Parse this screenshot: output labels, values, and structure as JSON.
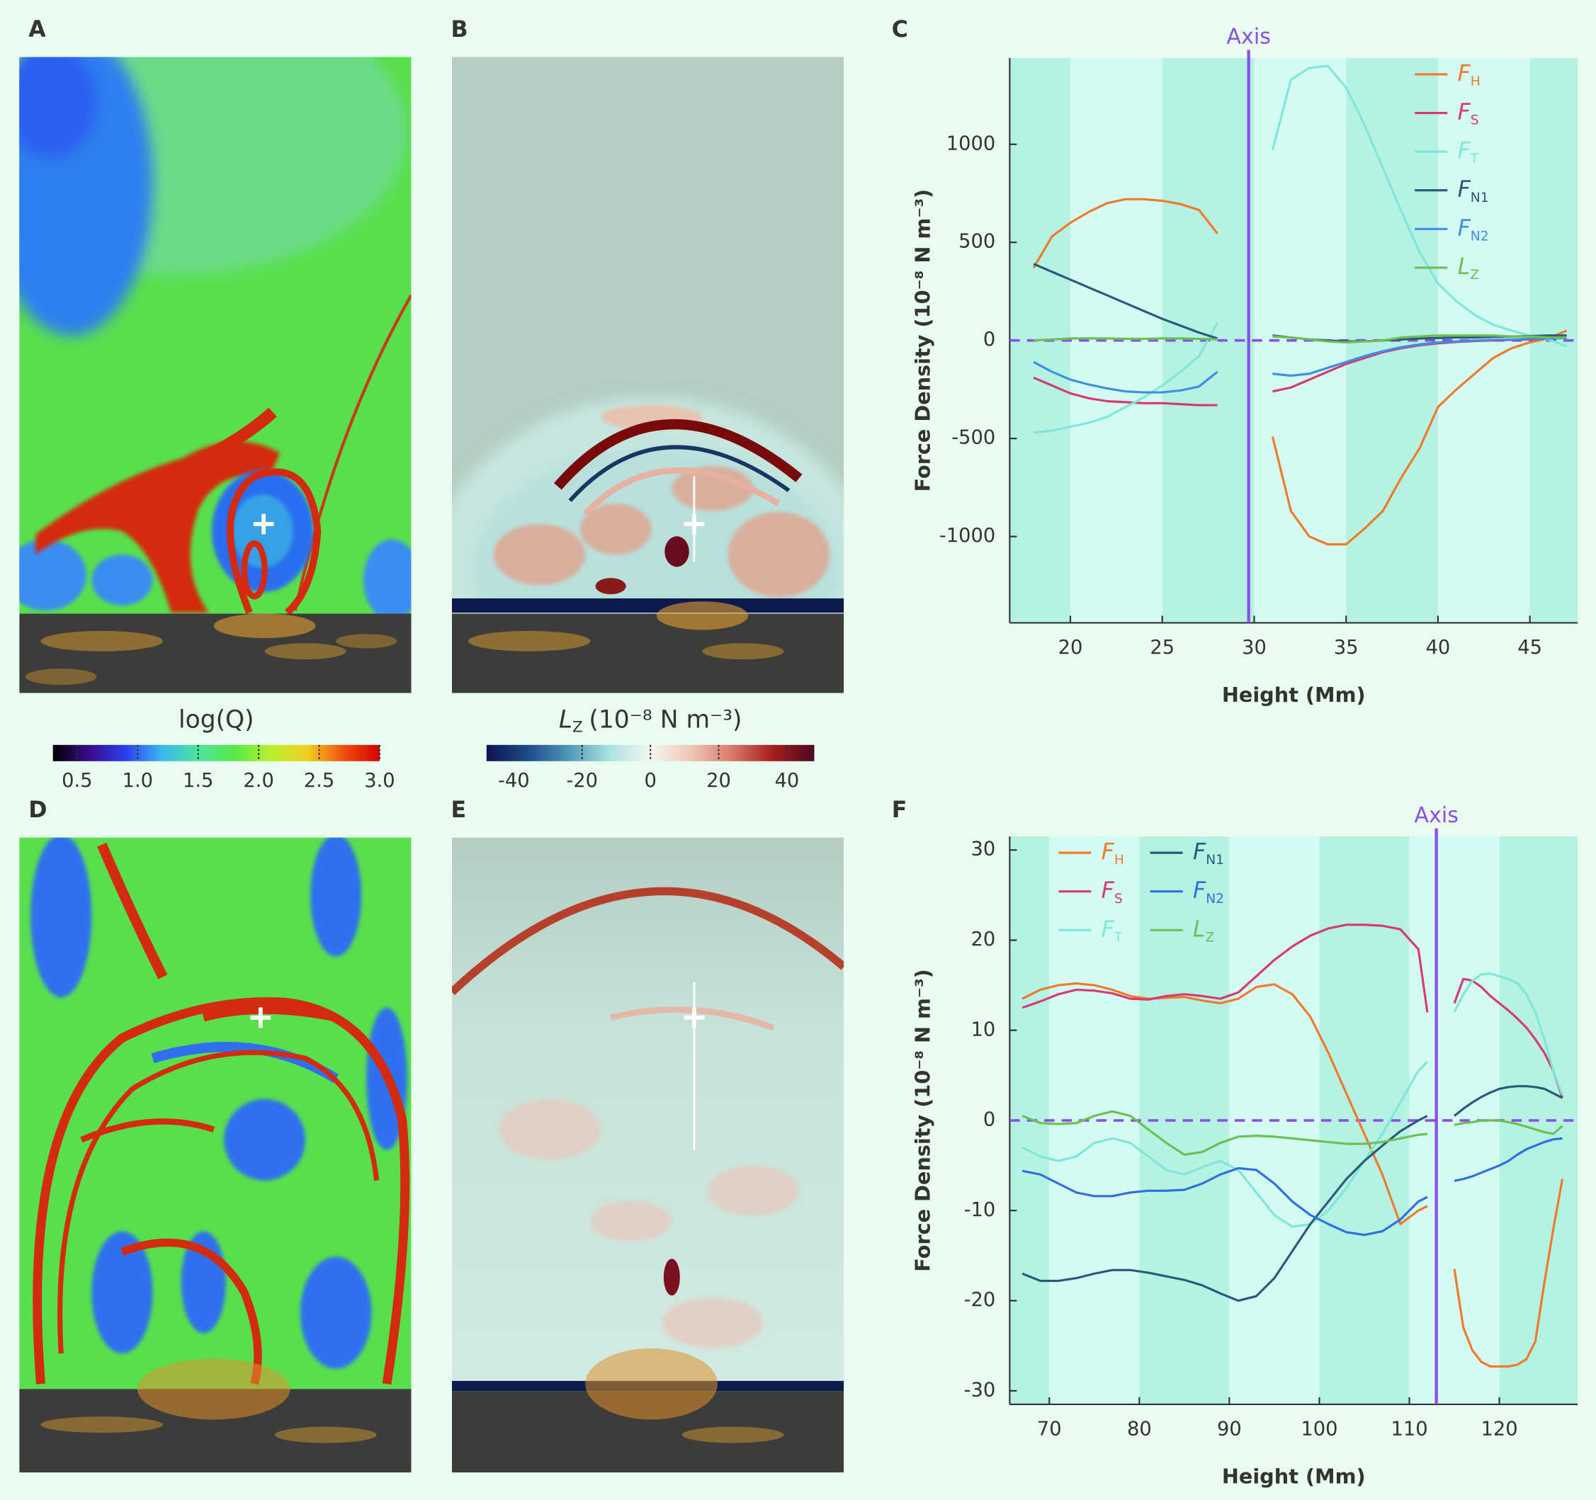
{
  "panel_labels": [
    "A",
    "B",
    "C",
    "D",
    "E",
    "F"
  ],
  "chart_data": [
    {
      "type": "colorbar",
      "label": "log(Q)",
      "xlim": [
        0.3,
        3.0
      ],
      "xticks": [
        0.5,
        {
          "value": 1,
          "label": "1.0"
        },
        1.5,
        {
          "value": 2,
          "label": "2.0"
        },
        2.5,
        {
          "value": 3,
          "label": "3.0"
        }
      ],
      "colormap": [
        "#000000",
        "#3a0a8a",
        "#2a3ff0",
        "#3cb7f0",
        "#4ee3a0",
        "#58e84a",
        "#b8f030",
        "#f0d020",
        "#f05010",
        "#d40000"
      ]
    },
    {
      "type": "colorbar",
      "label": "L",
      "label_subscript": "Z",
      "label_unit": "(10⁻⁸ N m⁻³)",
      "xlim": [
        -48,
        48
      ],
      "xticks": [
        -40,
        -20,
        0,
        20,
        40
      ],
      "colormap": [
        "#0c1550",
        "#1d4a8a",
        "#4f97b8",
        "#a9e3de",
        "#f4f7f2",
        "#efc6b4",
        "#d8786a",
        "#a41c1c",
        "#4a0a20"
      ]
    },
    {
      "type": "line",
      "xlabel": "Height (Mm)",
      "ylabel": "Force Density (10⁻⁸ N m⁻³)",
      "xlim": [
        16.7,
        47.6
      ],
      "ylim": [
        -1440,
        1440
      ],
      "xticks": [
        20,
        25,
        30,
        35,
        40,
        45
      ],
      "yticks": [
        -1000,
        -500,
        0,
        500,
        1000
      ],
      "axis_marker": {
        "x": 29.7,
        "label": "Axis",
        "color": "#8a4fe8"
      },
      "zero_line": true,
      "band_colors": [
        "#b5f2e4",
        "#d4fbf3"
      ],
      "legend": "upper right",
      "legend_columns": 1,
      "x": [
        18,
        19,
        20,
        21,
        22,
        23,
        24,
        25,
        26,
        27,
        28,
        30,
        31,
        32,
        33,
        34,
        35,
        36,
        37,
        38,
        39,
        40,
        41,
        42,
        43,
        44,
        45,
        46,
        47
      ],
      "series": [
        {
          "name": "F",
          "subscript": "H",
          "color": "#f07a28",
          "values": [
            370,
            530,
            600,
            655,
            700,
            720,
            720,
            712,
            695,
            665,
            545,
            null,
            -490,
            -870,
            -1000,
            -1040,
            -1040,
            -960,
            -870,
            -700,
            -550,
            -340,
            -250,
            -170,
            -90,
            -40,
            -10,
            10,
            50
          ]
        },
        {
          "name": "F",
          "subscript": "S",
          "color": "#d63a6e",
          "values": [
            -190,
            -230,
            -270,
            -295,
            -310,
            -315,
            -320,
            -320,
            -325,
            -330,
            -330,
            null,
            -260,
            -240,
            -200,
            -160,
            -120,
            -90,
            -60,
            -40,
            -25,
            -15,
            -8,
            -3,
            0,
            3,
            5,
            10,
            15
          ]
        },
        {
          "name": "F",
          "subscript": "T",
          "color": "#7de8d8",
          "values": [
            -470,
            -460,
            -440,
            -420,
            -390,
            -340,
            -290,
            -230,
            -160,
            -80,
            90,
            null,
            970,
            1330,
            1390,
            1400,
            1290,
            1100,
            880,
            660,
            450,
            290,
            200,
            130,
            80,
            50,
            25,
            5,
            -30
          ]
        },
        {
          "name": "F",
          "subscript": "N1",
          "color": "#2a5a7a",
          "values": [
            390,
            350,
            310,
            270,
            230,
            190,
            150,
            110,
            75,
            40,
            10,
            null,
            25,
            15,
            5,
            0,
            -5,
            -5,
            0,
            5,
            10,
            12,
            15,
            15,
            18,
            20,
            22,
            25,
            25
          ]
        },
        {
          "name": "F",
          "subscript": "N2",
          "color": "#3d8fe6",
          "values": [
            -110,
            -160,
            -200,
            -225,
            -245,
            -260,
            -265,
            -265,
            -255,
            -235,
            -160,
            null,
            -170,
            -180,
            -170,
            -140,
            -110,
            -80,
            -55,
            -35,
            -20,
            -10,
            -5,
            0,
            3,
            5,
            8,
            10,
            12
          ]
        },
        {
          "name": "L",
          "subscript": "Z",
          "color": "#6cbf52",
          "values": [
            0,
            5,
            10,
            10,
            10,
            8,
            8,
            10,
            10,
            8,
            5,
            null,
            20,
            15,
            5,
            -5,
            -10,
            -5,
            0,
            15,
            20,
            25,
            25,
            25,
            25,
            20,
            20,
            15,
            15
          ]
        }
      ]
    },
    {
      "type": "line",
      "xlabel": "Height (Mm)",
      "ylabel": "Force Density (10⁻⁸ N m⁻³)",
      "xlim": [
        65.6,
        128.7
      ],
      "ylim": [
        -31.5,
        31.5
      ],
      "xticks": [
        70,
        80,
        90,
        100,
        110,
        120
      ],
      "yticks": [
        -30,
        -20,
        -10,
        0,
        10,
        20,
        30
      ],
      "axis_marker": {
        "x": 113,
        "label": "Axis",
        "color": "#8a4fe8"
      },
      "zero_line": true,
      "band_colors": [
        "#b5f2e4",
        "#d4fbf3"
      ],
      "legend": "upper left",
      "legend_columns": 2,
      "x": [
        67,
        69,
        71,
        73,
        75,
        77,
        79,
        81,
        83,
        85,
        87,
        89,
        91,
        93,
        95,
        97,
        99,
        101,
        103,
        105,
        107,
        109,
        111,
        112,
        113,
        115,
        116,
        117,
        118,
        119,
        120,
        121,
        122,
        123,
        124,
        125,
        126,
        127
      ],
      "series": [
        {
          "name": "F",
          "subscript": "H",
          "color": "#f07a28",
          "values": [
            13.5,
            14.5,
            15,
            15.2,
            15,
            14.5,
            13.8,
            13.5,
            13.6,
            13.7,
            13.3,
            13,
            13.5,
            14.8,
            15.1,
            14,
            11.5,
            7.5,
            3,
            -1.5,
            -6,
            -11.5,
            -10,
            -9.5,
            null,
            -16.5,
            -23,
            -25.5,
            -26.8,
            -27.3,
            -27.3,
            -27.3,
            -27.1,
            -26.5,
            -24.5,
            -18,
            -12,
            -6.5
          ]
        },
        {
          "name": "F",
          "subscript": "S",
          "color": "#d63a6e",
          "values": [
            12.5,
            13.2,
            14,
            14.5,
            14.4,
            14.1,
            13.5,
            13.4,
            13.8,
            14,
            13.8,
            13.5,
            14.2,
            16,
            17.8,
            19.3,
            20.5,
            21.3,
            21.7,
            21.7,
            21.6,
            21.2,
            19,
            12,
            null,
            13,
            15.7,
            15.5,
            14.8,
            13.8,
            13,
            12.2,
            11.3,
            10.3,
            9,
            7.5,
            5.5,
            2.5
          ]
        },
        {
          "name": "F",
          "subscript": "T",
          "color": "#7de8d8",
          "values": [
            -3,
            -4,
            -4.5,
            -4,
            -2.5,
            -2,
            -2.5,
            -4,
            -5.5,
            -6,
            -5.2,
            -4.5,
            -5.5,
            -8,
            -10.5,
            -11.8,
            -11.5,
            -10,
            -7.5,
            -4.5,
            -1.5,
            2,
            5.5,
            6.5,
            null,
            12,
            14,
            15.5,
            16.2,
            16.3,
            16,
            15.7,
            15.2,
            14,
            12,
            9,
            5.5,
            2.8
          ]
        },
        {
          "name": "F",
          "subscript": "N1",
          "color": "#2a5a7a",
          "values": [
            -17,
            -17.8,
            -17.8,
            -17.5,
            -17,
            -16.6,
            -16.6,
            -16.9,
            -17.3,
            -17.7,
            -18.3,
            -19.2,
            -20,
            -19.5,
            -17.5,
            -14.5,
            -11.5,
            -9,
            -6.5,
            -4.5,
            -2.8,
            -1.2,
            0,
            0.5,
            null,
            0.5,
            1.3,
            2,
            2.6,
            3.1,
            3.5,
            3.7,
            3.8,
            3.8,
            3.7,
            3.5,
            3,
            2.5
          ]
        },
        {
          "name": "F",
          "subscript": "N2",
          "color": "#2f6fe0",
          "values": [
            -5.6,
            -6,
            -7,
            -8,
            -8.4,
            -8.4,
            -8,
            -7.8,
            -7.8,
            -7.7,
            -7,
            -6,
            -5.3,
            -5.5,
            -7,
            -9,
            -10.5,
            -11.5,
            -12.4,
            -12.7,
            -12.3,
            -11,
            -9,
            -8.5,
            null,
            -6.7,
            -6.5,
            -6.2,
            -5.8,
            -5.4,
            -5,
            -4.5,
            -3.8,
            -3.2,
            -2.8,
            -2.4,
            -2.1,
            -2
          ]
        },
        {
          "name": "L",
          "subscript": "Z",
          "color": "#6cbf52",
          "values": [
            0.5,
            -0.3,
            -0.4,
            -0.3,
            0.5,
            1,
            0.5,
            -1,
            -2.5,
            -3.8,
            -3.5,
            -2.5,
            -1.8,
            -1.7,
            -1.8,
            -2,
            -2.2,
            -2.4,
            -2.6,
            -2.6,
            -2.4,
            -2,
            -1.6,
            -1.5,
            null,
            -0.5,
            -0.3,
            -0.2,
            0,
            0,
            0,
            -0.2,
            -0.4,
            -0.7,
            -1,
            -1.3,
            -1.5,
            -0.6
          ]
        }
      ]
    }
  ]
}
